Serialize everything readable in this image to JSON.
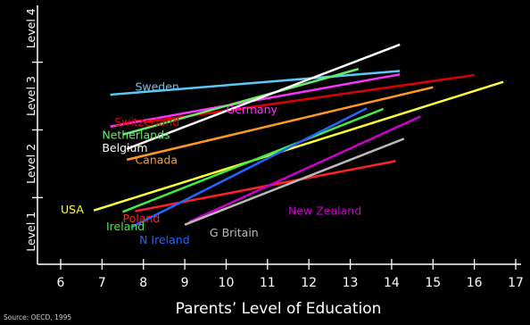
{
  "chart_data": {
    "type": "line",
    "title": "",
    "xlabel": "Parents’ Level of Education",
    "ylabel": "",
    "xlim": [
      6,
      17
    ],
    "xticks": [
      6,
      7,
      8,
      9,
      10,
      11,
      12,
      13,
      14,
      15,
      16,
      17
    ],
    "ylim": [
      0.7,
      4.3
    ],
    "ytick_labels": [
      {
        "label": "Level 1",
        "y": 1
      },
      {
        "label": "Level 2",
        "y": 2
      },
      {
        "label": "Level 3",
        "y": 3
      },
      {
        "label": "Level 4",
        "y": 4
      }
    ],
    "ytick_marks": [
      1.5,
      2.5,
      3.5
    ],
    "grid": false,
    "legend": "none",
    "source": "Source: OECD, 1995",
    "series": [
      {
        "name": "Sweden",
        "color": "#5bc8f5",
        "x": [
          7.2,
          14.2
        ],
        "y": [
          3.02,
          3.37
        ],
        "label_at": [
          7.8,
          3.13
        ]
      },
      {
        "name": "Germany",
        "color": "#ff33ff",
        "x": [
          7.2,
          14.2
        ],
        "y": [
          2.55,
          3.32
        ],
        "label_at": [
          10.0,
          2.8
        ]
      },
      {
        "name": "Switzerland",
        "color": "#dd0000",
        "x": [
          8.0,
          16.0
        ],
        "y": [
          2.61,
          3.31
        ],
        "label_at": [
          7.3,
          2.61
        ]
      },
      {
        "name": "Netherlands",
        "color": "#66ee66",
        "x": [
          7.5,
          13.2
        ],
        "y": [
          2.43,
          3.4
        ],
        "label_at": [
          7.0,
          2.42
        ]
      },
      {
        "name": "Belgium",
        "color": "#ffffff",
        "x": [
          7.6,
          14.2
        ],
        "y": [
          2.22,
          3.76
        ],
        "label_at": [
          7.0,
          2.23
        ]
      },
      {
        "name": "Canada",
        "color": "#ff9922",
        "x": [
          7.6,
          15.0
        ],
        "y": [
          2.06,
          3.13
        ],
        "label_at": [
          7.8,
          2.05
        ]
      },
      {
        "name": "USA",
        "color": "#ffff33",
        "x": [
          6.8,
          16.7
        ],
        "y": [
          1.31,
          3.21
        ],
        "label_at": [
          6.0,
          1.32
        ]
      },
      {
        "name": "Poland",
        "color": "#ff2222",
        "x": [
          7.8,
          14.1
        ],
        "y": [
          1.3,
          2.04
        ],
        "label_at": [
          7.5,
          1.19
        ]
      },
      {
        "name": "Ireland",
        "color": "#44ee44",
        "x": [
          7.5,
          13.8
        ],
        "y": [
          1.29,
          2.81
        ],
        "label_at": [
          7.1,
          1.07
        ]
      },
      {
        "name": "N Ireland",
        "color": "#2266ff",
        "x": [
          7.7,
          13.4
        ],
        "y": [
          1.06,
          2.82
        ],
        "label_at": [
          7.9,
          0.87
        ]
      },
      {
        "name": "New Zealand",
        "color": "#cc00cc",
        "x": [
          9.1,
          14.7
        ],
        "y": [
          1.14,
          2.7
        ],
        "label_at": [
          11.5,
          1.3
        ]
      },
      {
        "name": "G Britain",
        "color": "#bbbbbb",
        "x": [
          9.0,
          14.3
        ],
        "y": [
          1.1,
          2.37
        ],
        "label_at": [
          9.6,
          0.98
        ]
      }
    ]
  }
}
